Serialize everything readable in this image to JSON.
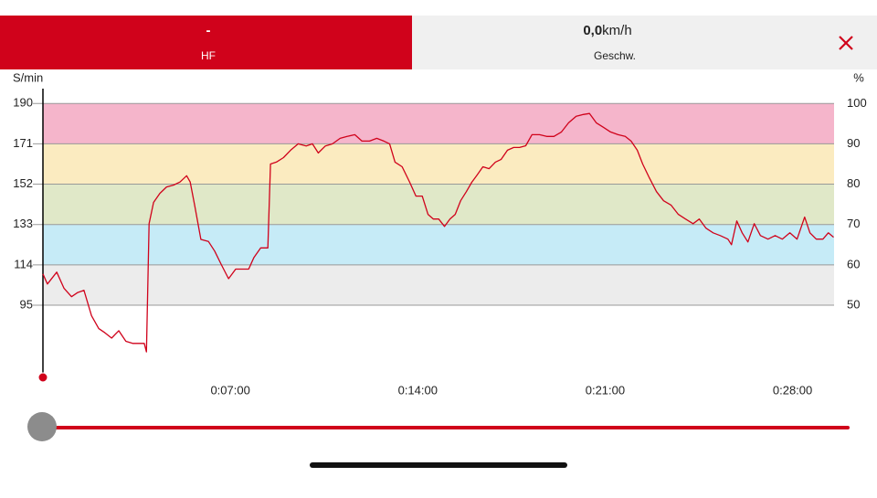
{
  "header": {
    "tabs": [
      {
        "value": "-",
        "label": "HF"
      },
      {
        "value": "0,0",
        "unit": "km/h",
        "label": "Geschw."
      }
    ]
  },
  "chart_data": {
    "type": "line",
    "y_label": "S/min",
    "y2_label": "%",
    "color": "#d0021b",
    "x": [
      0,
      10,
      31,
      47,
      64,
      78,
      92,
      109,
      125,
      139,
      154,
      170,
      186,
      201,
      215,
      227,
      232,
      238,
      248,
      262,
      277,
      293,
      307,
      322,
      330,
      340,
      354,
      371,
      385,
      400,
      416,
      432,
      447,
      461,
      473,
      488,
      504,
      510,
      523,
      539,
      555,
      572,
      590,
      604,
      617,
      633,
      649,
      666,
      682,
      699,
      715,
      732,
      748,
      764,
      777,
      789,
      805,
      822,
      836,
      850,
      863,
      875,
      887,
      900,
      912,
      924,
      936,
      949,
      961,
      973,
      986,
      1000,
      1014,
      1027,
      1041,
      1055,
      1068,
      1082,
      1096,
      1113,
      1129,
      1145,
      1162,
      1178,
      1195,
      1211,
      1225,
      1240,
      1256,
      1272,
      1289,
      1305,
      1318,
      1332,
      1344,
      1359,
      1375,
      1391,
      1408,
      1424,
      1440,
      1457,
      1471,
      1486,
      1502,
      1518,
      1535,
      1543,
      1555,
      1567,
      1580,
      1594,
      1608,
      1625,
      1641,
      1657,
      1674,
      1690,
      1707,
      1719,
      1733,
      1748,
      1760,
      1772
    ],
    "values": [
      109.7,
      105,
      110.6,
      103,
      99,
      101,
      102,
      90,
      84,
      82,
      79.5,
      83,
      78,
      77,
      77,
      77,
      73,
      133.4,
      143.4,
      147.7,
      150.7,
      151.6,
      153,
      156,
      153,
      142,
      126,
      125,
      120.5,
      114,
      107.5,
      112,
      112,
      112,
      117.5,
      122,
      122,
      161.5,
      162.4,
      164.5,
      168,
      171,
      170,
      171,
      166.7,
      170,
      171,
      173.6,
      174.5,
      175.3,
      172.3,
      172.3,
      173.6,
      172.3,
      171,
      162.4,
      160.2,
      152.9,
      146.4,
      146.4,
      137.8,
      135.6,
      135.6,
      132.1,
      135.6,
      137.8,
      144.2,
      148.5,
      152.9,
      156.3,
      160.2,
      159.3,
      162.4,
      163.7,
      168,
      169.3,
      169.3,
      170.1,
      175.3,
      175.3,
      174.5,
      174.5,
      176.6,
      180.9,
      184,
      184.8,
      185.3,
      180.9,
      178.8,
      176.6,
      175.3,
      174.5,
      172.3,
      168,
      161.5,
      155,
      148.5,
      144.2,
      142.1,
      137.8,
      135.6,
      133.4,
      135.6,
      131.3,
      129.1,
      127.8,
      126.1,
      123.5,
      134.7,
      129.1,
      124.8,
      133.4,
      127.8,
      126.1,
      127.8,
      126.1,
      129.1,
      126.1,
      136.5,
      129.1,
      126.1,
      126.1,
      129.1,
      127
    ],
    "xlim": [
      0,
      1773
    ],
    "xticks": [
      {
        "value": 420,
        "label": "0:07:00"
      },
      {
        "value": 840,
        "label": "0:14:00"
      },
      {
        "value": 1260,
        "label": "0:21:00"
      },
      {
        "value": 1680,
        "label": "0:28:00"
      }
    ],
    "ylim": [
      61,
      197
    ],
    "yticks": [
      95,
      114,
      133,
      152,
      171,
      190
    ],
    "y2lim": [
      32.1,
      103.7
    ],
    "y2ticks": [
      50,
      60,
      70,
      80,
      90,
      100
    ],
    "zones": [
      {
        "from": 95,
        "to": 114,
        "color": "#ececec"
      },
      {
        "from": 114,
        "to": 133,
        "color": "#c6ebf7"
      },
      {
        "from": 133,
        "to": 152,
        "color": "#e0e8c8"
      },
      {
        "from": 152,
        "to": 171,
        "color": "#fbebc0"
      },
      {
        "from": 171,
        "to": 190,
        "color": "#f5b5cb"
      }
    ],
    "grid": true
  }
}
